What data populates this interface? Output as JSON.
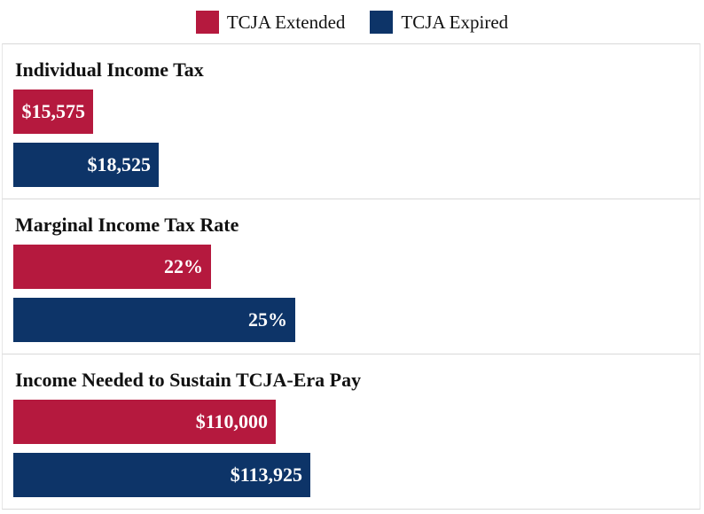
{
  "colors": {
    "extended": "#b5193e",
    "expired": "#0d3468"
  },
  "legend": [
    {
      "label": "TCJA Extended",
      "color": "#b5193e"
    },
    {
      "label": "TCJA Expired",
      "color": "#0d3468"
    }
  ],
  "chart_data": [
    {
      "type": "bar",
      "orientation": "horizontal",
      "title": "Individual Income Tax",
      "categories": [
        "TCJA Extended",
        "TCJA Expired"
      ],
      "values": [
        15575,
        18525
      ],
      "labels": [
        "$15,575",
        "$18,525"
      ],
      "legend": "top-center",
      "grid": false
    },
    {
      "type": "bar",
      "orientation": "horizontal",
      "title": "Marginal Income Tax Rate",
      "categories": [
        "TCJA Extended",
        "TCJA Expired"
      ],
      "values": [
        22,
        25
      ],
      "labels": [
        "22%",
        "25%"
      ],
      "legend": "top-center",
      "grid": false
    },
    {
      "type": "bar",
      "orientation": "horizontal",
      "title": "Income Needed to Sustain TCJA-Era Pay",
      "categories": [
        "TCJA Extended",
        "TCJA Expired"
      ],
      "values": [
        110000,
        113925
      ],
      "labels": [
        "$110,000",
        "$113,925"
      ],
      "legend": "top-center",
      "grid": false
    }
  ]
}
